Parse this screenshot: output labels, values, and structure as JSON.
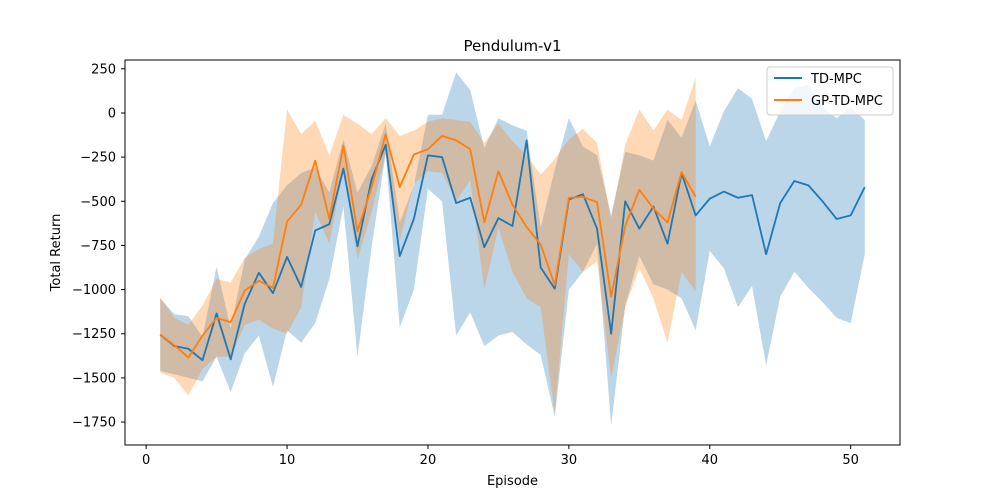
{
  "chart_data": {
    "type": "line",
    "title": "Pendulum-v1",
    "xlabel": "Episode",
    "ylabel": "Total Return",
    "xlim": [
      -1.5,
      53.5
    ],
    "ylim": [
      -1880,
      300
    ],
    "xticks": [
      0,
      10,
      20,
      30,
      40,
      50
    ],
    "yticks": [
      250,
      0,
      -250,
      -500,
      -750,
      -1000,
      -1250,
      -1500,
      -1750
    ],
    "grid": false,
    "legend_position": "top-right",
    "series": [
      {
        "name": "TD-MPC",
        "color": "#1f77b4",
        "x": [
          1,
          2,
          3,
          4,
          5,
          6,
          7,
          8,
          9,
          10,
          11,
          12,
          13,
          14,
          15,
          16,
          17,
          18,
          19,
          20,
          21,
          22,
          23,
          24,
          25,
          26,
          27,
          28,
          29,
          30,
          31,
          32,
          33,
          34,
          35,
          36,
          37,
          38,
          39,
          40,
          41,
          42,
          43,
          44,
          45,
          46,
          47,
          48,
          49,
          50,
          51
        ],
        "y": [
          -1255,
          -1320,
          -1335,
          -1400,
          -1135,
          -1395,
          -1080,
          -905,
          -1020,
          -815,
          -985,
          -665,
          -630,
          -315,
          -755,
          -375,
          -180,
          -810,
          -600,
          -240,
          -250,
          -510,
          -480,
          -760,
          -595,
          -640,
          -155,
          -875,
          -995,
          -490,
          -460,
          -655,
          -1250,
          -500,
          -655,
          -530,
          -740,
          -340,
          -580,
          -485,
          -445,
          -480,
          -465,
          -800,
          -510,
          -385,
          -410,
          -500,
          -600,
          -580,
          -420
        ],
        "lower": [
          -1460,
          -1480,
          -1500,
          -1520,
          -1380,
          -1580,
          -1360,
          -1260,
          -1550,
          -1230,
          -1300,
          -1190,
          -940,
          -530,
          -1380,
          -760,
          -230,
          -1215,
          -1000,
          -430,
          -500,
          -1260,
          -1130,
          -1320,
          -1260,
          -1240,
          -1310,
          -1370,
          -1720,
          -1000,
          -900,
          -740,
          -1770,
          -1090,
          -810,
          -970,
          -1000,
          -1050,
          -1230,
          -780,
          -880,
          -1100,
          -980,
          -1430,
          -1040,
          -900,
          -990,
          -1070,
          -1160,
          -1190,
          -800
        ],
        "upper": [
          -1050,
          -1140,
          -1150,
          -1270,
          -870,
          -1220,
          -830,
          -700,
          -510,
          -410,
          -340,
          -310,
          -450,
          -150,
          -450,
          -300,
          -60,
          -620,
          -410,
          -10,
          -10,
          230,
          130,
          -200,
          -30,
          -70,
          -100,
          -650,
          -320,
          -30,
          -190,
          -240,
          -580,
          -220,
          -240,
          -270,
          -40,
          -140,
          70,
          -190,
          10,
          140,
          80,
          -160,
          10,
          140,
          160,
          30,
          -30,
          30,
          -40
        ]
      },
      {
        "name": "GP-TD-MPC",
        "color": "#ff7f0e",
        "x": [
          1,
          2,
          3,
          4,
          5,
          6,
          7,
          8,
          9,
          10,
          11,
          12,
          13,
          14,
          15,
          16,
          17,
          18,
          19,
          20,
          21,
          22,
          23,
          24,
          25,
          26,
          27,
          28,
          29,
          30,
          31,
          32,
          33,
          34,
          35,
          36,
          37,
          38,
          39
        ],
        "y": [
          -1255,
          -1315,
          -1385,
          -1260,
          -1160,
          -1185,
          -1005,
          -950,
          -990,
          -615,
          -520,
          -270,
          -600,
          -185,
          -670,
          -420,
          -120,
          -420,
          -235,
          -205,
          -130,
          -155,
          -205,
          -620,
          -330,
          -520,
          -645,
          -745,
          -975,
          -480,
          -475,
          -505,
          -1040,
          -640,
          -435,
          -540,
          -620,
          -335,
          -475
        ],
        "lower": [
          -1470,
          -1500,
          -1600,
          -1450,
          -1380,
          -1380,
          -1200,
          -1170,
          -1220,
          -1250,
          -1100,
          -560,
          -740,
          -320,
          -830,
          -560,
          -230,
          -720,
          -400,
          -330,
          -340,
          -500,
          -380,
          -1000,
          -650,
          -900,
          -1050,
          -1100,
          -1700,
          -800,
          -900,
          -840,
          -1500,
          -1100,
          -880,
          -1050,
          -1300,
          -900,
          -1010
        ],
        "upper": [
          -1045,
          -1160,
          -1200,
          -1090,
          -940,
          -960,
          -820,
          -770,
          -740,
          20,
          -120,
          -45,
          -240,
          -10,
          -60,
          -120,
          -30,
          -130,
          -100,
          -50,
          -30,
          -40,
          -50,
          -170,
          -60,
          -160,
          -240,
          -350,
          -260,
          -150,
          -90,
          -170,
          -600,
          -180,
          20,
          -100,
          20,
          -40,
          200
        ]
      }
    ]
  }
}
